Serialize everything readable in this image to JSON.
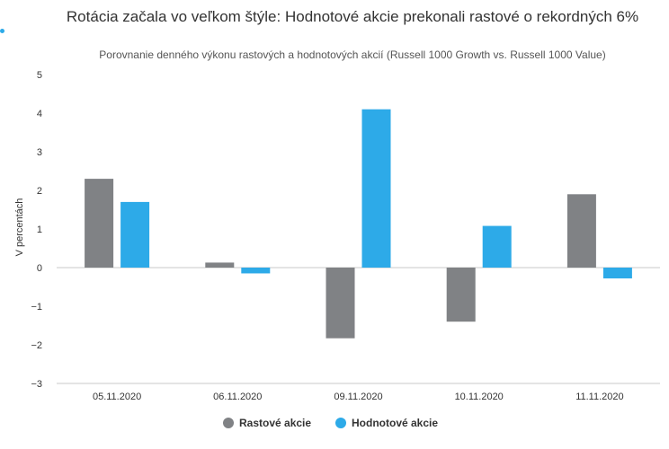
{
  "chart_data": {
    "type": "bar",
    "title": "Rotácia začala vo veľkom štýle: Hodnotové akcie prekonali rastové o rekordných 6%",
    "subtitle": "Porovnanie denného výkonu rastových a hodnotových akcií (Russell 1000 Growth vs. Russell 1000 Value)",
    "xlabel": "",
    "ylabel": "V percentách",
    "categories": [
      "05.11.2020",
      "06.11.2020",
      "09.11.2020",
      "10.11.2020",
      "11.11.2020"
    ],
    "series": [
      {
        "name": "Rastové akcie",
        "color": "#808285",
        "values": [
          2.3,
          0.13,
          -1.83,
          -1.4,
          1.9
        ]
      },
      {
        "name": "Hodnotové akcie",
        "color": "#2daae8",
        "values": [
          1.7,
          -0.15,
          4.1,
          1.08,
          -0.28
        ]
      }
    ],
    "ylim": [
      -3,
      5
    ],
    "yticks": [
      "5",
      "4",
      "3",
      "2",
      "1",
      "0",
      "−1",
      "−2",
      "−3"
    ],
    "ytick_values": [
      5,
      4,
      3,
      2,
      1,
      0,
      -1,
      -2,
      -3
    ],
    "grid": false,
    "legend": "bottom-center",
    "accent_dot_color": "#2daae8"
  }
}
